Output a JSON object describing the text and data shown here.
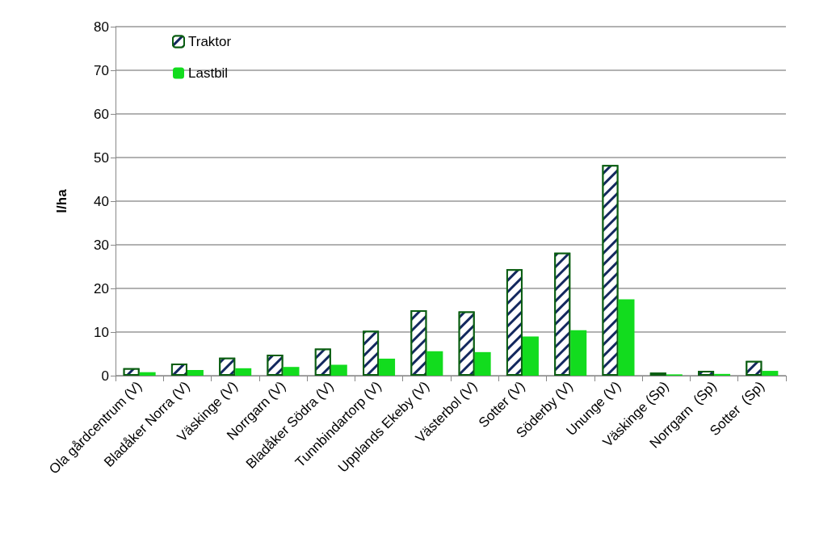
{
  "chart_data": {
    "type": "bar",
    "ylabel": "l/ha",
    "categories": [
      "Ola gårdcentrum (V)",
      "Bladåker Norra (V)",
      "Väskinge (V)",
      "Norrgarn (V)",
      "Bladåker Södra (V)",
      "Tunnbindartorp (V)",
      "Upplands Ekeby (V)",
      "Västerbol (V)",
      "Sotter (V)",
      "Söderby (V)",
      "Ununge (V)",
      "Väskinge (Sp)",
      "Norrgarn  (Sp)",
      "Sotter  (Sp)"
    ],
    "series": [
      {
        "name": "Traktor",
        "color": "#13285e",
        "values": [
          1.7,
          2.8,
          4.1,
          4.8,
          6.2,
          10.3,
          15.0,
          14.7,
          24.4,
          28.2,
          48.3,
          0.7,
          1.1,
          3.4
        ]
      },
      {
        "name": "Lastbil",
        "color": "#12dc1e",
        "values": [
          0.8,
          1.3,
          1.7,
          2.0,
          2.5,
          3.9,
          5.6,
          5.4,
          9.0,
          10.4,
          17.5,
          0.3,
          0.4,
          1.1
        ]
      }
    ],
    "ylim": [
      0,
      80
    ],
    "yticks": [
      0,
      10,
      20,
      30,
      40,
      50,
      60,
      70,
      80
    ],
    "grid": "y",
    "legend": "top left"
  }
}
